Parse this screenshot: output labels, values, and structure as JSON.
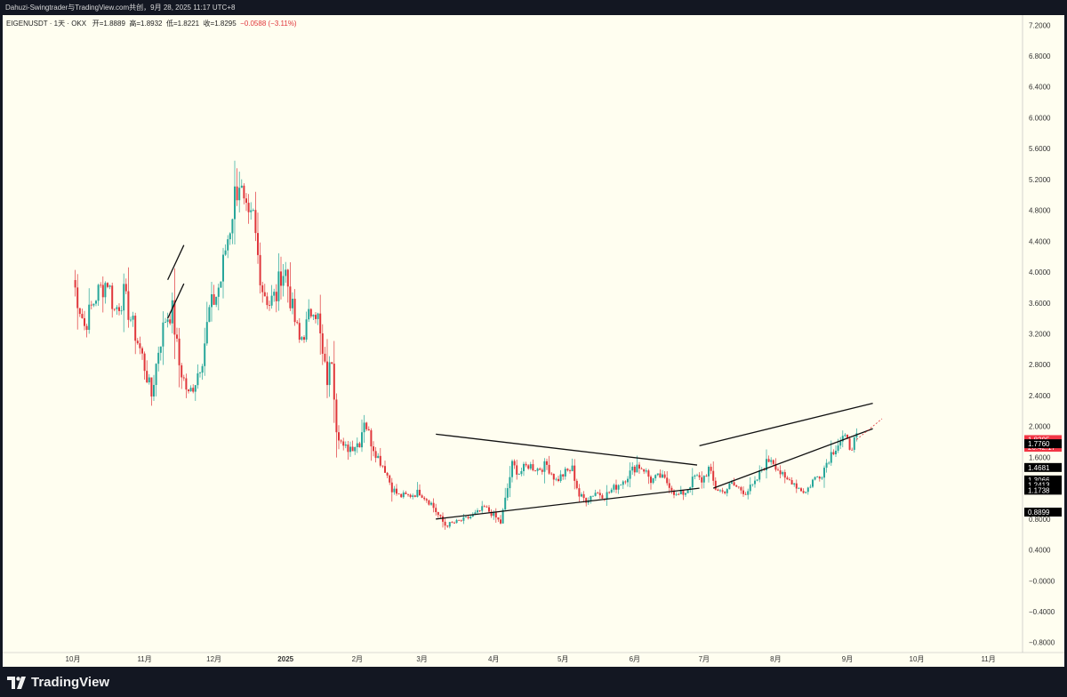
{
  "header": {
    "publisher": "Dahuzi-Swingtrader与TradingView.com共创，9月 28, 2025 11:17 UTC+8"
  },
  "symbol": {
    "name": "EIGENUSDT · 1天 · OKX",
    "open": "开=1.8889",
    "high": "高=1.8932",
    "low": "低=1.8221",
    "close": "收=1.8295",
    "change": "−0.0588 (−3.11%)"
  },
  "footer": {
    "logo_text": "TradingView"
  },
  "colors": {
    "up": "#26a69a",
    "down": "#e0363b",
    "background": "#fffef0",
    "line": "#111111"
  },
  "chart_data": {
    "type": "candlestick",
    "symbol": "EIGENUSDT",
    "interval": "1天",
    "exchange": "OKX",
    "y_ticks": [
      "7.2000",
      "6.8000",
      "6.4000",
      "6.0000",
      "5.6000",
      "5.2000",
      "4.8000",
      "4.4000",
      "4.0000",
      "3.6000",
      "3.2000",
      "2.8000",
      "2.4000",
      "2.0000",
      "1.6000",
      "1.2000",
      "0.8000",
      "0.4000",
      "−0.0000",
      "−0.4000",
      "−0.8000"
    ],
    "y_tick_values": [
      7.2,
      6.8,
      6.4,
      6.0,
      5.6,
      5.2,
      4.8,
      4.4,
      4.0,
      3.6,
      3.2,
      2.8,
      2.4,
      2.0,
      1.6,
      1.2,
      0.8,
      0.4,
      0,
      -0.4,
      -0.8
    ],
    "ylim": [
      -0.93,
      7.33
    ],
    "x_ticks": [
      {
        "label": "10月",
        "day": 0
      },
      {
        "label": "11月",
        "day": 31
      },
      {
        "label": "12月",
        "day": 61
      },
      {
        "label": "2025",
        "day": 92
      },
      {
        "label": "2月",
        "day": 123
      },
      {
        "label": "3月",
        "day": 151
      },
      {
        "label": "4月",
        "day": 182
      },
      {
        "label": "5月",
        "day": 212
      },
      {
        "label": "6月",
        "day": 243
      },
      {
        "label": "7月",
        "day": 273
      },
      {
        "label": "8月",
        "day": 304
      },
      {
        "label": "9月",
        "day": 335
      },
      {
        "label": "10月",
        "day": 365
      },
      {
        "label": "11月",
        "day": 396
      }
    ],
    "price_tags": [
      {
        "label": "1.8295",
        "value": 1.8295,
        "bg": "#f23645"
      },
      {
        "label": "20:42:17",
        "value": 1.73,
        "bg": "#f23645"
      },
      {
        "label": "1.7760",
        "value": 1.776,
        "bg": "#000000"
      },
      {
        "label": "1.4681",
        "value": 1.4681,
        "bg": "#000000"
      },
      {
        "label": "1.3066",
        "value": 1.3066,
        "bg": "#000000"
      },
      {
        "label": "1.2413",
        "value": 1.2413,
        "bg": "#000000"
      },
      {
        "label": "1.1738",
        "value": 1.1738,
        "bg": "#000000"
      },
      {
        "label": "0.8899",
        "value": 0.8899,
        "bg": "#000000"
      }
    ],
    "close_anchors": [
      [
        0,
        3.9
      ],
      [
        5,
        3.3
      ],
      [
        10,
        3.7
      ],
      [
        15,
        3.9
      ],
      [
        18,
        3.5
      ],
      [
        22,
        3.7
      ],
      [
        26,
        3.3
      ],
      [
        30,
        2.9
      ],
      [
        34,
        2.4
      ],
      [
        37,
        3.0
      ],
      [
        40,
        3.4
      ],
      [
        43,
        3.5
      ],
      [
        46,
        2.8
      ],
      [
        50,
        2.4
      ],
      [
        53,
        2.6
      ],
      [
        56,
        2.9
      ],
      [
        59,
        3.5
      ],
      [
        62,
        3.7
      ],
      [
        64,
        3.9
      ],
      [
        66,
        4.3
      ],
      [
        68,
        4.6
      ],
      [
        70,
        5.0
      ],
      [
        72,
        5.2
      ],
      [
        74,
        4.8
      ],
      [
        76,
        4.6
      ],
      [
        78,
        4.7
      ],
      [
        80,
        4.2
      ],
      [
        82,
        3.8
      ],
      [
        85,
        3.6
      ],
      [
        88,
        3.7
      ],
      [
        90,
        4.0
      ],
      [
        92,
        4.0
      ],
      [
        95,
        3.5
      ],
      [
        98,
        3.1
      ],
      [
        101,
        3.3
      ],
      [
        104,
        3.6
      ],
      [
        106,
        3.4
      ],
      [
        108,
        2.9
      ],
      [
        110,
        2.6
      ],
      [
        112,
        2.9
      ],
      [
        114,
        2.0
      ],
      [
        117,
        1.7
      ],
      [
        121,
        1.75
      ],
      [
        124,
        1.8
      ],
      [
        126,
        2.1
      ],
      [
        129,
        1.8
      ],
      [
        132,
        1.6
      ],
      [
        135,
        1.45
      ],
      [
        138,
        1.2
      ],
      [
        141,
        1.1
      ],
      [
        145,
        1.1
      ],
      [
        150,
        1.15
      ],
      [
        155,
        1.0
      ],
      [
        158,
        0.85
      ],
      [
        161,
        0.72
      ],
      [
        165,
        0.75
      ],
      [
        170,
        0.8
      ],
      [
        175,
        0.88
      ],
      [
        178,
        0.95
      ],
      [
        182,
        0.85
      ],
      [
        185,
        0.75
      ],
      [
        187,
        1.05
      ],
      [
        190,
        1.5
      ],
      [
        193,
        1.4
      ],
      [
        197,
        1.5
      ],
      [
        201,
        1.45
      ],
      [
        205,
        1.5
      ],
      [
        209,
        1.3
      ],
      [
        213,
        1.4
      ],
      [
        216,
        1.45
      ],
      [
        219,
        1.1
      ],
      [
        222,
        1.05
      ],
      [
        226,
        1.15
      ],
      [
        230,
        1.1
      ],
      [
        234,
        1.2
      ],
      [
        238,
        1.3
      ],
      [
        241,
        1.4
      ],
      [
        244,
        1.5
      ],
      [
        247,
        1.45
      ],
      [
        250,
        1.3
      ],
      [
        254,
        1.35
      ],
      [
        258,
        1.25
      ],
      [
        261,
        1.1
      ],
      [
        265,
        1.15
      ],
      [
        269,
        1.35
      ],
      [
        272,
        1.3
      ],
      [
        275,
        1.45
      ],
      [
        278,
        1.2
      ],
      [
        281,
        1.15
      ],
      [
        285,
        1.25
      ],
      [
        288,
        1.2
      ],
      [
        291,
        1.15
      ],
      [
        295,
        1.25
      ],
      [
        298,
        1.45
      ],
      [
        302,
        1.6
      ],
      [
        305,
        1.45
      ],
      [
        308,
        1.3
      ],
      [
        311,
        1.3
      ],
      [
        314,
        1.2
      ],
      [
        317,
        1.15
      ],
      [
        320,
        1.3
      ],
      [
        324,
        1.4
      ],
      [
        327,
        1.6
      ],
      [
        330,
        1.75
      ],
      [
        333,
        1.85
      ],
      [
        336,
        1.75
      ],
      [
        339,
        1.83
      ]
    ],
    "drawings": [
      {
        "name": "upper-trendline",
        "p1": [
          157,
          1.9
        ],
        "p2": [
          270,
          1.5
        ]
      },
      {
        "name": "lower-trendline",
        "p1": [
          157,
          0.8
        ],
        "p2": [
          271,
          1.2
        ]
      },
      {
        "name": "channel-upper",
        "p1": [
          271,
          1.75
        ],
        "p2": [
          346,
          2.3
        ]
      },
      {
        "name": "channel-lower",
        "p1": [
          277,
          1.2
        ],
        "p2": [
          346,
          1.97
        ]
      },
      {
        "name": "early-channel-upper",
        "p1": [
          41,
          3.9
        ],
        "p2": [
          48,
          4.35
        ]
      },
      {
        "name": "early-channel-lower",
        "p1": [
          41,
          3.4
        ],
        "p2": [
          48,
          3.85
        ]
      }
    ]
  }
}
